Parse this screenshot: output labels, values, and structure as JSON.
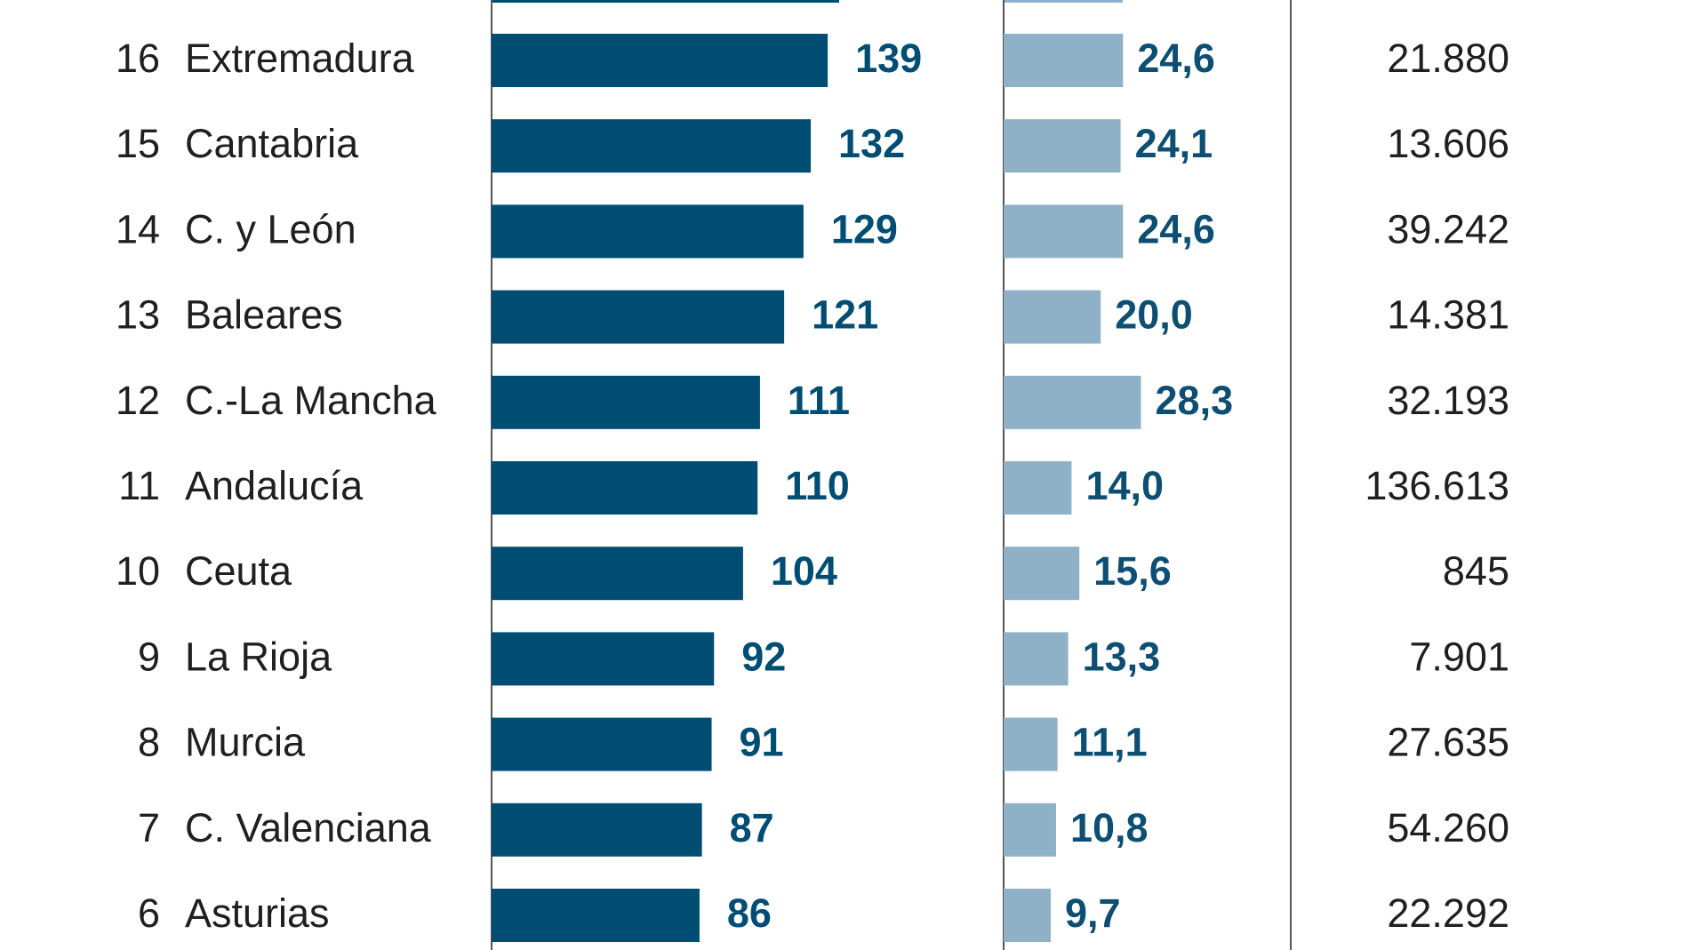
{
  "chart_data": {
    "type": "table",
    "title": "",
    "colors": {
      "bar_primary": "#004d73",
      "bar_secondary": "#8fb1c8",
      "label_primary": "#004d73",
      "label_secondary": "#0d4f73",
      "divider": "#555555"
    },
    "rows": [
      {
        "rank": "16",
        "region": "Extremadura",
        "value_a": 139,
        "value_a_label": "139",
        "value_b": 24.6,
        "value_b_label": "24,6",
        "total": "21.880"
      },
      {
        "rank": "15",
        "region": "Cantabria",
        "value_a": 132,
        "value_a_label": "132",
        "value_b": 24.1,
        "value_b_label": "24,1",
        "total": "13.606"
      },
      {
        "rank": "14",
        "region": "C. y León",
        "value_a": 129,
        "value_a_label": "129",
        "value_b": 24.6,
        "value_b_label": "24,6",
        "total": "39.242"
      },
      {
        "rank": "13",
        "region": "Baleares",
        "value_a": 121,
        "value_a_label": "121",
        "value_b": 20.0,
        "value_b_label": "20,0",
        "total": "14.381"
      },
      {
        "rank": "12",
        "region": "C.-La Mancha",
        "value_a": 111,
        "value_a_label": "111",
        "value_b": 28.3,
        "value_b_label": "28,3",
        "total": "32.193"
      },
      {
        "rank": "11",
        "region": "Andalucía",
        "value_a": 110,
        "value_a_label": "110",
        "value_b": 14.0,
        "value_b_label": "14,0",
        "total": "136.613"
      },
      {
        "rank": "10",
        "region": "Ceuta",
        "value_a": 104,
        "value_a_label": "104",
        "value_b": 15.6,
        "value_b_label": "15,6",
        "total": "845"
      },
      {
        "rank": "9",
        "region": "La Rioja",
        "value_a": 92,
        "value_a_label": "92",
        "value_b": 13.3,
        "value_b_label": "13,3",
        "total": "7.901"
      },
      {
        "rank": "8",
        "region": "Murcia",
        "value_a": 91,
        "value_a_label": "91",
        "value_b": 11.1,
        "value_b_label": "11,1",
        "total": "27.635"
      },
      {
        "rank": "7",
        "region": "C. Valenciana",
        "value_a": 87,
        "value_a_label": "87",
        "value_b": 10.8,
        "value_b_label": "10,8",
        "total": "54.260"
      },
      {
        "rank": "6",
        "region": "Asturias",
        "value_a": 86,
        "value_a_label": "86",
        "value_b": 9.7,
        "value_b_label": "9,7",
        "total": "22.292"
      }
    ]
  }
}
